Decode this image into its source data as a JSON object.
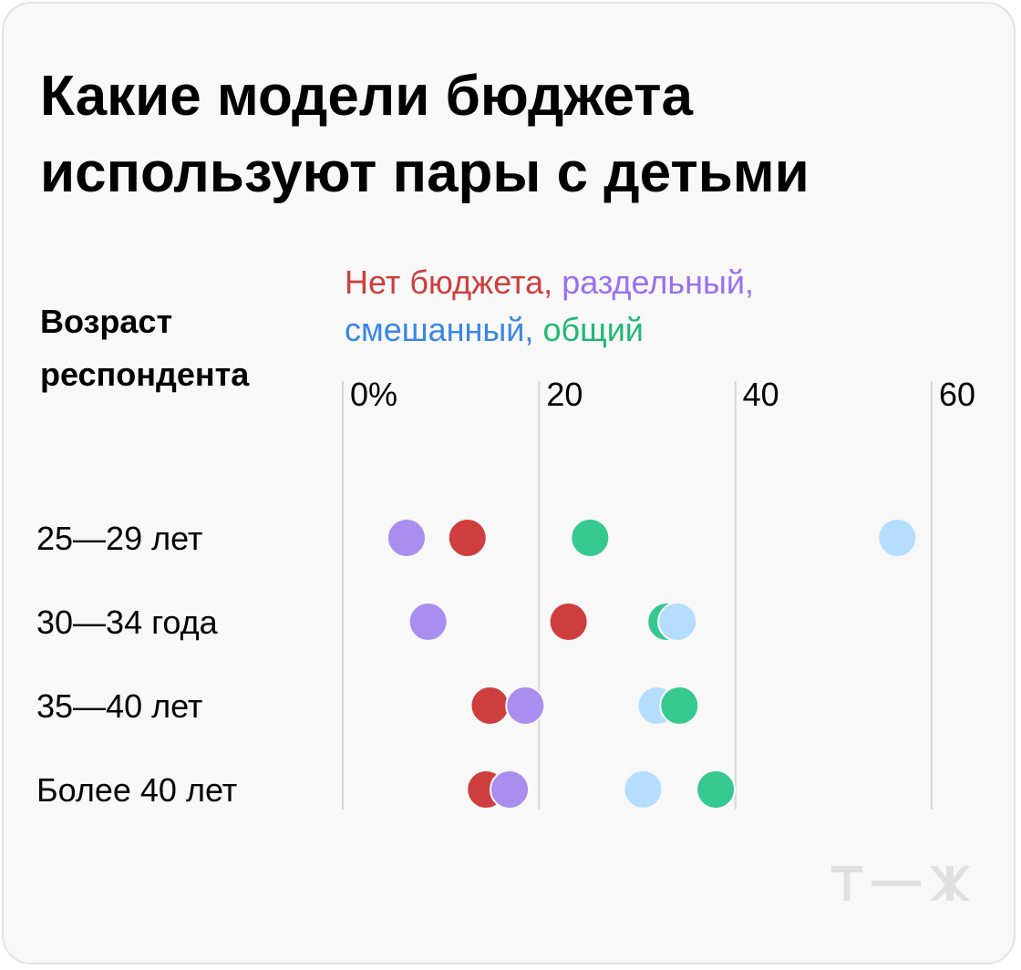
{
  "chart_data": {
    "type": "dot",
    "title_lines": [
      "Какие модели бюджета",
      "используют пары с детьми"
    ],
    "ylabel_lines": [
      "Возраст",
      "респондента"
    ],
    "tick_labels": [
      "0%",
      "20",
      "40",
      "60"
    ],
    "ticks": [
      0,
      20,
      40,
      60
    ],
    "xlim": [
      0,
      60
    ],
    "categories": [
      "25—29 лет",
      "30—34 года",
      "35—40 лет",
      "Более 40 лет"
    ],
    "legend_lines": [
      [
        {
          "text": "Нет бюджета,",
          "series": 0
        },
        {
          "text": "раздельный,",
          "series": 1
        }
      ],
      [
        {
          "text": "смешанный,",
          "series": 2
        },
        {
          "text": "общий",
          "series": 3
        }
      ]
    ],
    "series": [
      {
        "color": "#cf3e3e",
        "label_color": "#cf3e3e",
        "values": [
          12.7,
          23.0,
          15.0,
          14.6
        ]
      },
      {
        "color": "#a98ef0",
        "label_color": "#9a6ff0",
        "values": [
          6.5,
          8.7,
          18.6,
          17.0
        ]
      },
      {
        "color": "#b4ddff",
        "label_color": "#3a86e8",
        "values": [
          56.5,
          34.1,
          32.0,
          30.6
        ]
      },
      {
        "color": "#36c98f",
        "label_color": "#1fb877",
        "values": [
          25.2,
          33.0,
          34.3,
          38.0
        ]
      }
    ],
    "draw_order": [
      [
        1,
        0,
        3,
        2
      ],
      [
        1,
        0,
        3,
        2
      ],
      [
        0,
        1,
        2,
        3
      ],
      [
        0,
        1,
        2,
        3
      ]
    ],
    "grid": true,
    "legend_position": "top"
  },
  "logo": {
    "name": "т—ж logo",
    "color": "#e0e0e0"
  }
}
